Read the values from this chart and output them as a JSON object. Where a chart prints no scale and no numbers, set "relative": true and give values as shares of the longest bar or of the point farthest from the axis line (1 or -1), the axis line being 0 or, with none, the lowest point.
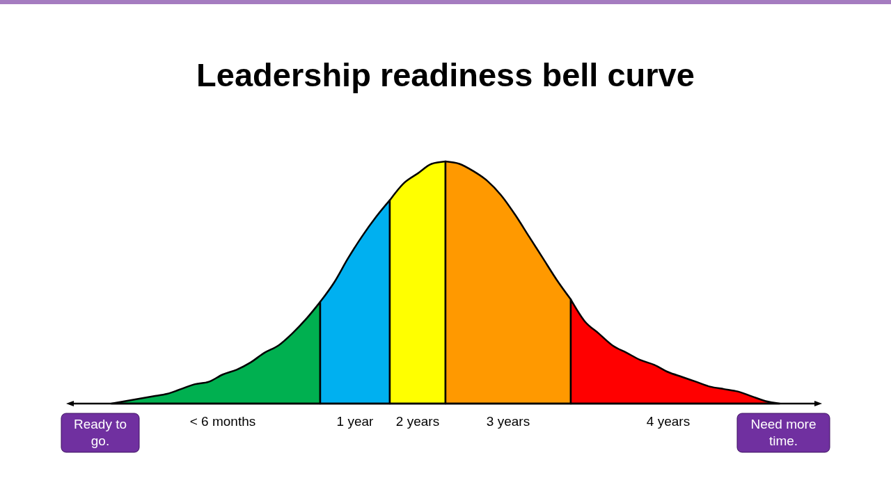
{
  "chart_data": {
    "type": "area",
    "title": "Leadership readiness bell curve",
    "relative": true,
    "categories": [
      null,
      null,
      null,
      null,
      null,
      null,
      null,
      null,
      null,
      null,
      null,
      null,
      null,
      null,
      null,
      null,
      null,
      null,
      null,
      null,
      null,
      null,
      null,
      null,
      null,
      null,
      null,
      null,
      null,
      null,
      null,
      null,
      null,
      null,
      null,
      null,
      null,
      null,
      null,
      null,
      null,
      null,
      null,
      null,
      null,
      null,
      null,
      null,
      null
    ],
    "series": [
      {
        "name": "< 6 months",
        "color": "#00b050",
        "values": [
          0,
          0.01,
          0.02,
          0.03,
          0.04,
          0.06,
          0.08,
          0.09,
          0.12,
          0.14,
          0.17,
          0.21,
          0.24,
          0.29,
          0.35,
          0.42,
          null,
          null,
          null,
          null,
          null,
          null,
          null,
          null,
          null,
          null,
          null,
          null,
          null,
          null,
          null,
          null,
          null,
          null,
          null,
          null,
          null,
          null,
          null,
          null,
          null,
          null,
          null,
          null,
          null,
          null,
          null,
          null,
          null
        ]
      },
      {
        "name": "1 year",
        "color": "#00b0f0",
        "values": [
          null,
          null,
          null,
          null,
          null,
          null,
          null,
          null,
          null,
          null,
          null,
          null,
          null,
          null,
          null,
          0.42,
          0.5,
          0.6,
          0.69,
          0.77,
          0.84,
          null,
          null,
          null,
          null,
          null,
          null,
          null,
          null,
          null,
          null,
          null,
          null,
          null,
          null,
          null,
          null,
          null,
          null,
          null,
          null,
          null,
          null,
          null,
          null,
          null,
          null,
          null,
          null
        ]
      },
      {
        "name": "2 years",
        "color": "#ffff00",
        "values": [
          null,
          null,
          null,
          null,
          null,
          null,
          null,
          null,
          null,
          null,
          null,
          null,
          null,
          null,
          null,
          null,
          null,
          null,
          null,
          null,
          0.84,
          0.91,
          0.95,
          0.99,
          1,
          null,
          null,
          null,
          null,
          null,
          null,
          null,
          null,
          null,
          null,
          null,
          null,
          null,
          null,
          null,
          null,
          null,
          null,
          null,
          null,
          null,
          null,
          null,
          null
        ]
      },
      {
        "name": "3 years",
        "color": "#ff9900",
        "values": [
          null,
          null,
          null,
          null,
          null,
          null,
          null,
          null,
          null,
          null,
          null,
          null,
          null,
          null,
          null,
          null,
          null,
          null,
          null,
          null,
          null,
          null,
          null,
          null,
          1,
          0.99,
          0.96,
          0.92,
          0.86,
          0.78,
          0.69,
          0.6,
          0.51,
          0.43,
          null,
          null,
          null,
          null,
          null,
          null,
          null,
          null,
          null,
          null,
          null,
          null,
          null,
          null,
          null
        ]
      },
      {
        "name": "4 years",
        "color": "#ff0000",
        "values": [
          null,
          null,
          null,
          null,
          null,
          null,
          null,
          null,
          null,
          null,
          null,
          null,
          null,
          null,
          null,
          null,
          null,
          null,
          null,
          null,
          null,
          null,
          null,
          null,
          null,
          null,
          null,
          null,
          null,
          null,
          null,
          null,
          null,
          0.43,
          0.34,
          0.29,
          0.24,
          0.21,
          0.18,
          0.16,
          0.13,
          0.11,
          0.09,
          0.07,
          0.06,
          0.05,
          0.03,
          0.01,
          0
        ]
      }
    ],
    "annotations": [
      "Ready to go.",
      "Need more time."
    ]
  }
}
